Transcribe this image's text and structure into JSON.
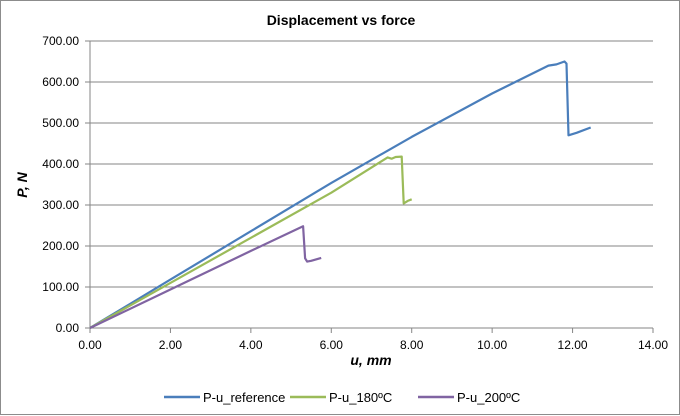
{
  "chart_data": {
    "type": "line",
    "title": "Displacement  vs force",
    "xlabel": "u, mm",
    "ylabel": "P, N",
    "xlim": [
      0,
      14
    ],
    "ylim": [
      0,
      700
    ],
    "x_ticks": [
      "0.00",
      "2.00",
      "4.00",
      "6.00",
      "8.00",
      "10.00",
      "12.00",
      "14.00"
    ],
    "y_ticks": [
      "0.00",
      "100.00",
      "200.00",
      "300.00",
      "400.00",
      "500.00",
      "600.00",
      "700.00"
    ],
    "grid": "horizontal",
    "legend_position": "bottom",
    "series": [
      {
        "name": "P-u_reference",
        "color": "#4a7ebb",
        "points": [
          [
            0,
            0
          ],
          [
            2,
            118
          ],
          [
            4,
            236
          ],
          [
            6,
            354
          ],
          [
            8,
            466
          ],
          [
            10,
            572
          ],
          [
            11.4,
            640
          ],
          [
            11.6,
            643
          ],
          [
            11.8,
            650
          ],
          [
            11.85,
            645
          ],
          [
            11.9,
            470
          ],
          [
            12.1,
            476
          ],
          [
            12.45,
            489
          ]
        ]
      },
      {
        "name": "P-u_180ºC",
        "color": "#9bbb59",
        "points": [
          [
            0,
            0
          ],
          [
            2,
            110
          ],
          [
            4,
            220
          ],
          [
            6,
            330
          ],
          [
            7.4,
            416
          ],
          [
            7.5,
            413
          ],
          [
            7.6,
            417
          ],
          [
            7.75,
            418
          ],
          [
            7.8,
            304
          ],
          [
            7.9,
            310
          ],
          [
            8.0,
            314
          ]
        ]
      },
      {
        "name": "P-u_200ºC",
        "color": "#8064a2",
        "points": [
          [
            0,
            0
          ],
          [
            2,
            94
          ],
          [
            4,
            188
          ],
          [
            5.3,
            248
          ],
          [
            5.35,
            170
          ],
          [
            5.4,
            162
          ],
          [
            5.5,
            164
          ],
          [
            5.75,
            171
          ]
        ]
      }
    ]
  }
}
